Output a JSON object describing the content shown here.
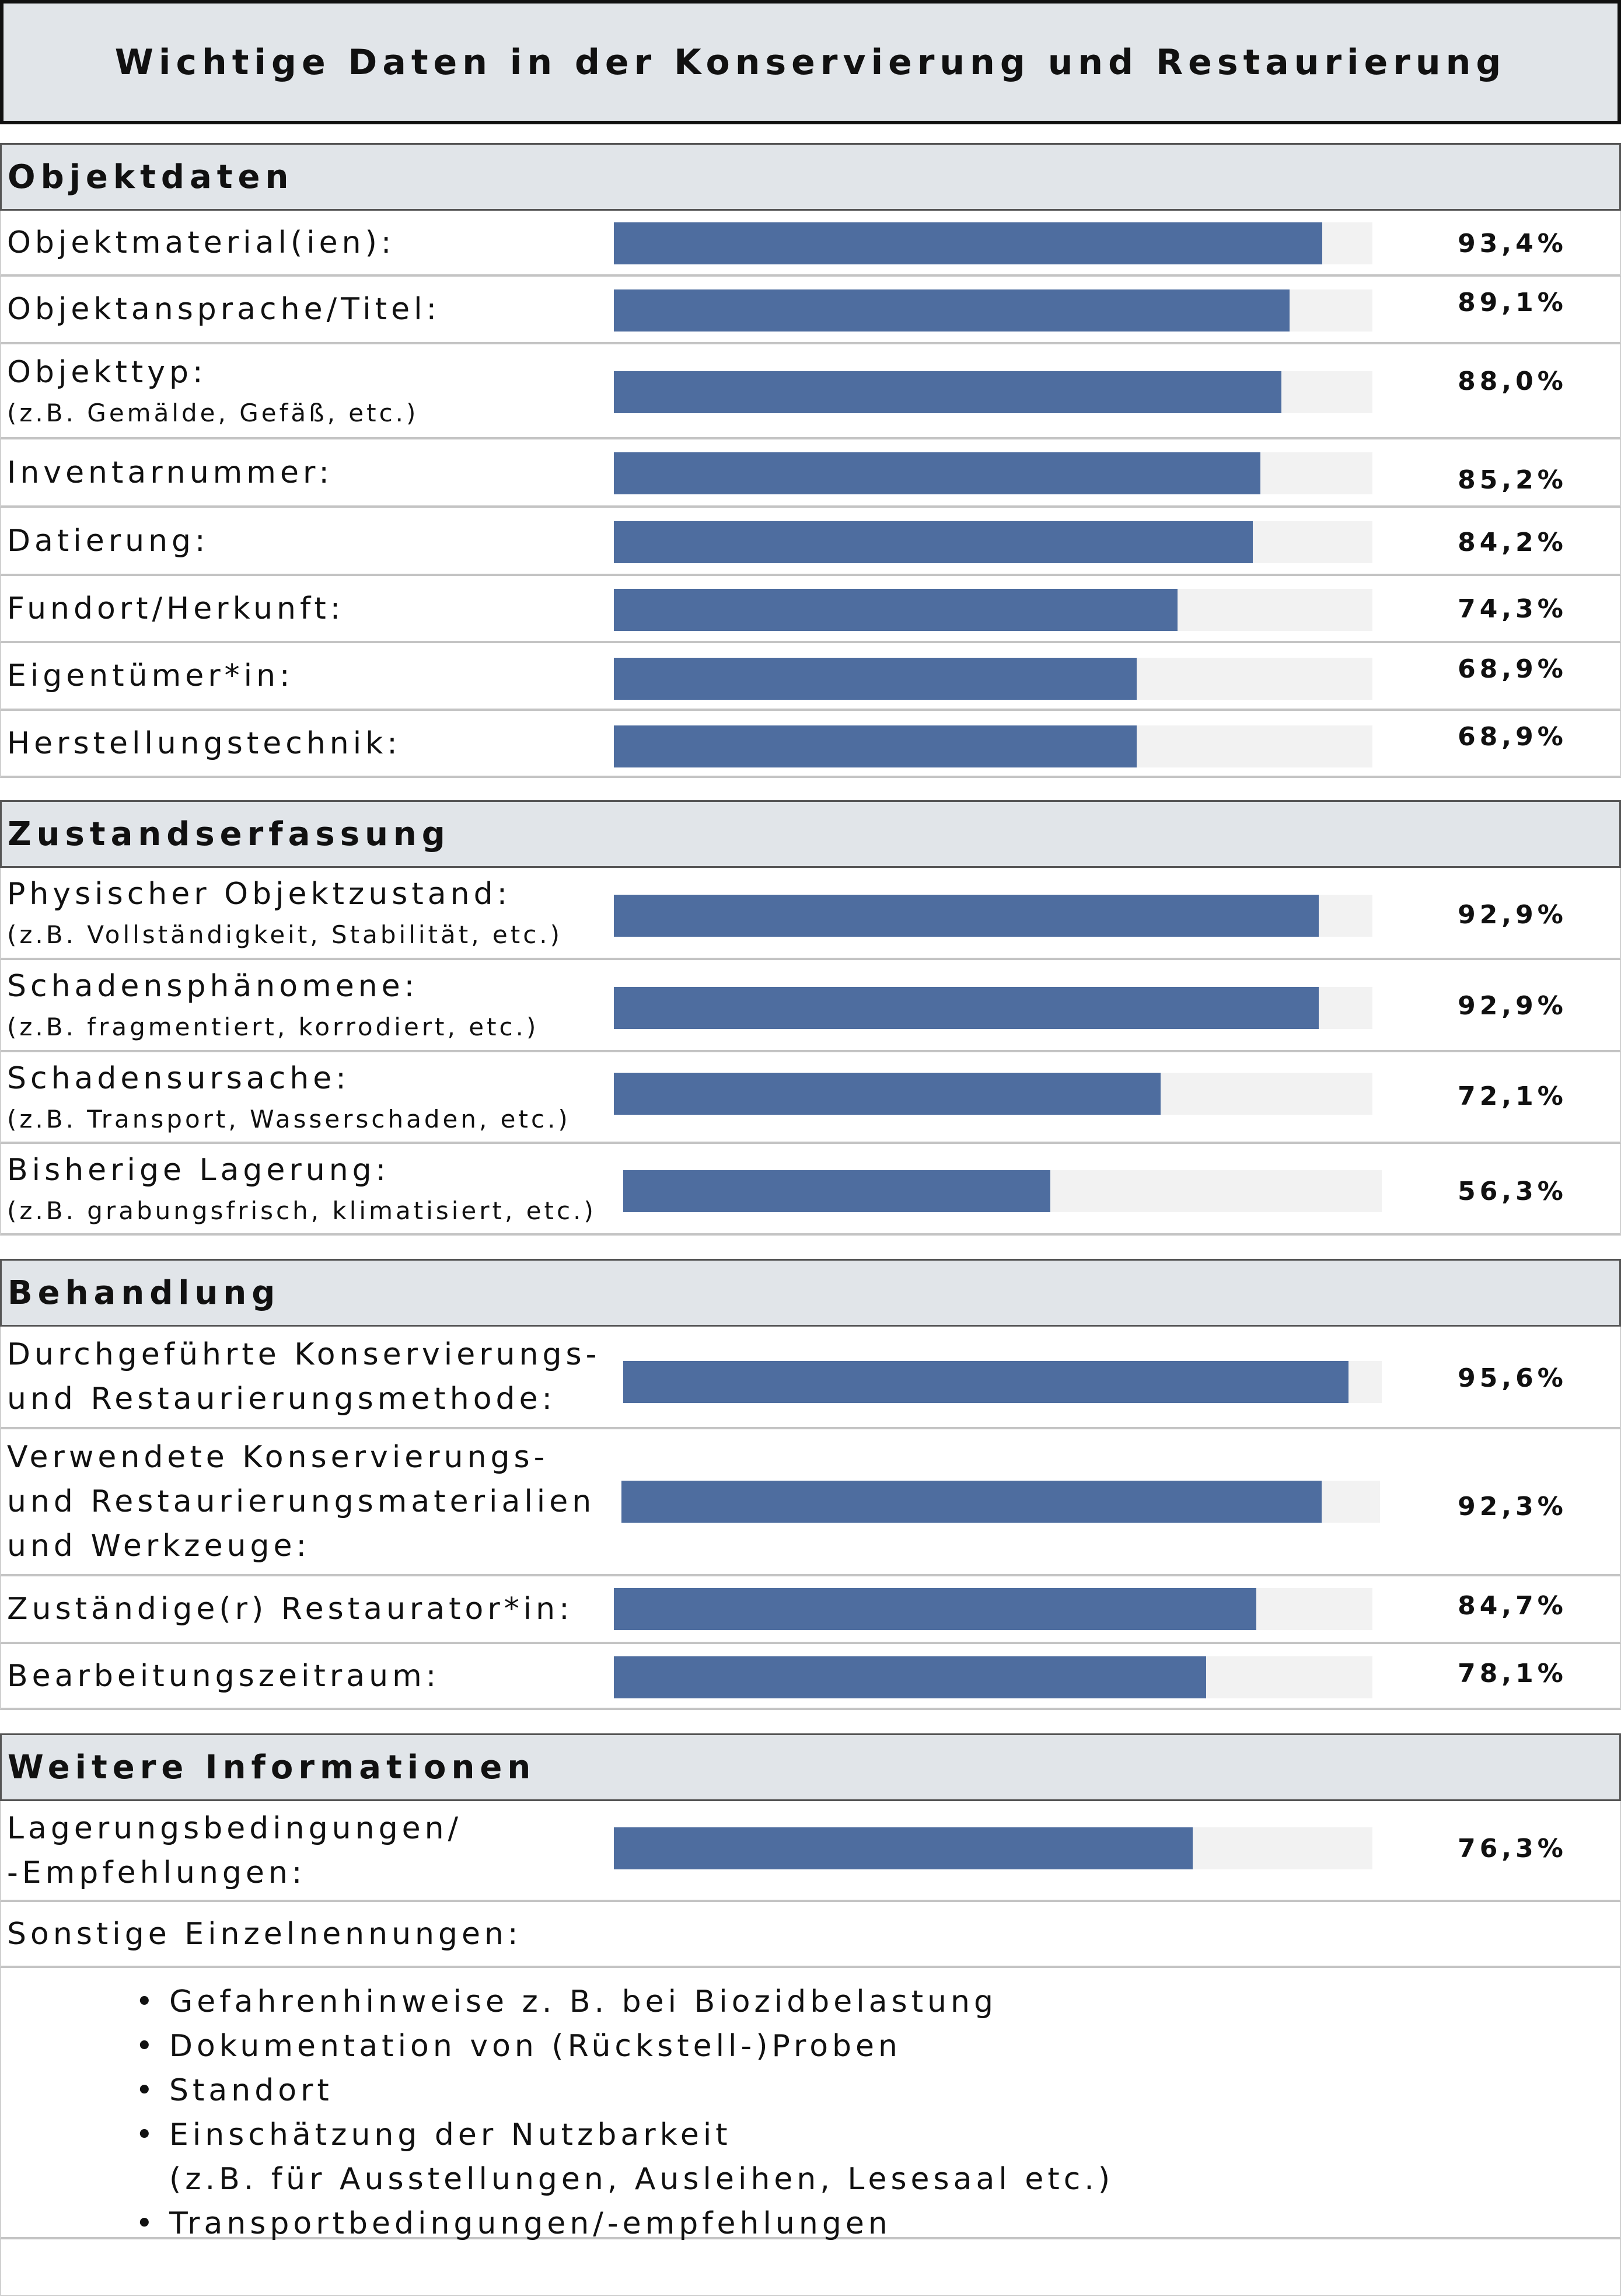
{
  "title": "Wichtige Daten in der Konservierung und Restaurierung",
  "colors": {
    "bar": "#4e6d9f",
    "track": "#f2f2f2",
    "header_bg": "#e1e5e9"
  },
  "chart_data": {
    "type": "bar",
    "orientation": "horizontal",
    "title": "Wichtige Daten in der Konservierung und Restaurierung",
    "ylim": [
      0,
      100
    ],
    "sections": [
      {
        "name": "Objektdaten",
        "items": [
          {
            "label": "Objektmaterial(ien):",
            "sub": "",
            "value": 93.4,
            "display": "93,4%"
          },
          {
            "label": "Objektansprache/Titel:",
            "sub": "",
            "value": 89.1,
            "display": "89,1%"
          },
          {
            "label": "Objekttyp:",
            "sub": "(z.B. Gemälde, Gefäß, etc.)",
            "value": 88.0,
            "display": "88,0%"
          },
          {
            "label": "Inventarnummer:",
            "sub": "",
            "value": 85.2,
            "display": "85,2%"
          },
          {
            "label": "Datierung:",
            "sub": "",
            "value": 84.2,
            "display": "84,2%"
          },
          {
            "label": "Fundort/Herkunft:",
            "sub": "",
            "value": 74.3,
            "display": "74,3%"
          },
          {
            "label": "Eigentümer*in:",
            "sub": "",
            "value": 68.9,
            "display": "68,9%"
          },
          {
            "label": "Herstellungstechnik:",
            "sub": "",
            "value": 68.9,
            "display": "68,9%"
          }
        ]
      },
      {
        "name": "Zustandserfassung",
        "items": [
          {
            "label": "Physischer Objektzustand:",
            "sub": "(z.B. Vollständigkeit, Stabilität, etc.)",
            "value": 92.9,
            "display": "92,9%"
          },
          {
            "label": "Schadensphänomene:",
            "sub": "(z.B. fragmentiert, korrodiert, etc.)",
            "value": 92.9,
            "display": "92,9%"
          },
          {
            "label": "Schadensursache:",
            "sub": "(z.B. Transport, Wasserschaden, etc.)",
            "value": 72.1,
            "display": "72,1%"
          },
          {
            "label": "Bisherige Lagerung:",
            "sub": "(z.B. grabungsfrisch, klimatisiert, etc.)",
            "value": 56.3,
            "display": "56,3%"
          }
        ]
      },
      {
        "name": "Behandlung",
        "items": [
          {
            "label": "Durchgeführte Konservierungs-\nund Restaurierungsmethode:",
            "sub": "",
            "value": 95.6,
            "display": "95,6%"
          },
          {
            "label": "Verwendete Konservierungs-\nund Restaurierungsmaterialien\nund Werkzeuge:",
            "sub": "",
            "value": 92.3,
            "display": "92,3%"
          },
          {
            "label": "Zuständige(r) Restaurator*in:",
            "sub": "",
            "value": 84.7,
            "display": "84,7%"
          },
          {
            "label": "Bearbeitungszeitraum:",
            "sub": "",
            "value": 78.1,
            "display": "78,1%"
          }
        ]
      },
      {
        "name": "Weitere Informationen",
        "items": [
          {
            "label": "Lagerungsbedingungen/\n-Empfehlungen:",
            "sub": "",
            "value": 76.3,
            "display": "76,3%"
          }
        ]
      }
    ]
  },
  "other": {
    "label": "Sonstige Einzelnennungen:",
    "bullets": [
      "Gefahrenhinweise z. B. bei Biozidbelastung",
      "Dokumentation von (Rückstell-)Proben",
      "Standort",
      "Einschätzung der Nutzbarkeit",
      "Transportbedingungen/-empfehlungen"
    ],
    "bullet_note": "(z.B. für Ausstellungen, Ausleihen, Lesesaal etc.)"
  }
}
